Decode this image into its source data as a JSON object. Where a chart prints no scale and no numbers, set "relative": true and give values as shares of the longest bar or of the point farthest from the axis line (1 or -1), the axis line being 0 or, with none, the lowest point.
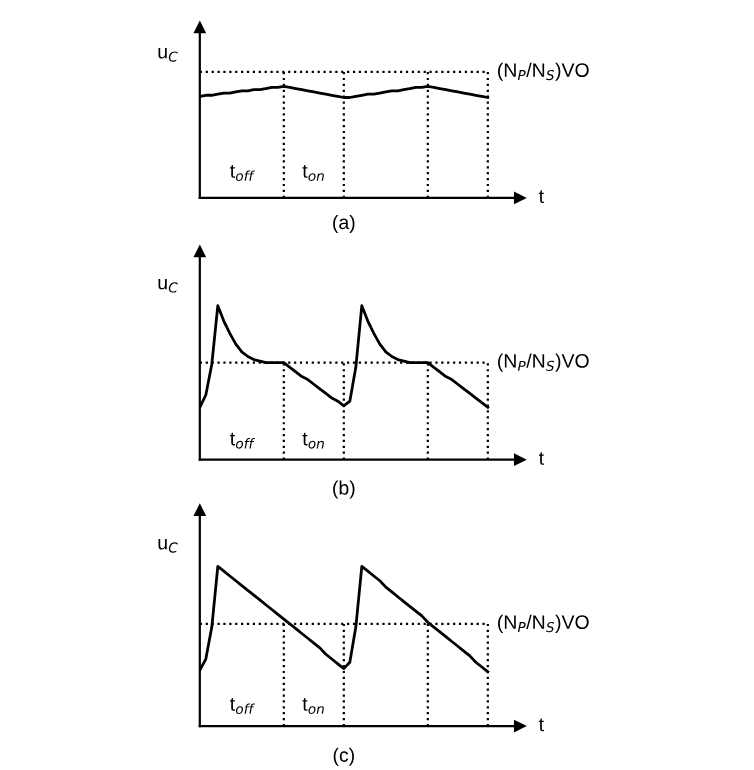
{
  "chart_data": [
    {
      "type": "line",
      "title": "(a)",
      "xlabel": "t",
      "ylabel": "u$_{C}$",
      "relative": true,
      "categories": [
        null,
        null,
        null,
        null,
        null,
        null,
        null,
        null,
        null,
        null,
        null,
        null,
        null,
        null,
        null,
        null,
        null,
        null,
        null,
        null,
        null,
        null,
        null,
        null,
        null,
        null,
        null,
        null,
        null,
        null,
        null,
        null,
        null,
        null,
        null,
        null,
        null,
        null,
        null,
        null,
        null,
        null,
        null,
        null,
        null,
        null,
        null,
        null,
        null
      ],
      "series": [
        {
          "color": "#000000",
          "values": [
            0.91,
            0.92,
            0.92,
            0.93,
            0.94,
            0.94,
            0.95,
            0.96,
            0.96,
            0.97,
            0.97,
            0.98,
            0.99,
            0.99,
            1.0,
            0.99,
            0.98,
            0.97,
            0.96,
            0.95,
            0.94,
            0.93,
            0.92,
            0.91,
            0.9,
            0.9,
            0.91,
            0.92,
            0.93,
            0.93,
            0.94,
            0.95,
            0.96,
            0.96,
            0.97,
            0.98,
            0.99,
            0.99,
            1.0,
            0.99,
            0.98,
            0.97,
            0.96,
            0.95,
            0.94,
            0.93,
            0.92,
            0.91,
            0.9
          ]
        }
      ],
      "ref_lines": [
        {
          "axis": "y",
          "value": 1.13,
          "label": "(N$_{P}$/N$_{S}$)VO",
          "line_style": "dotted"
        }
      ],
      "annotations": [
        "t$_{off}$",
        "t$_{on}$"
      ]
    },
    {
      "type": "line",
      "title": "(b)",
      "xlabel": "t",
      "ylabel": "u$_{C}$",
      "relative": true,
      "categories": [
        null,
        null,
        null,
        null,
        null,
        null,
        null,
        null,
        null,
        null,
        null,
        null,
        null,
        null,
        null,
        null,
        null,
        null,
        null,
        null,
        null,
        null,
        null,
        null,
        null,
        null,
        null,
        null,
        null,
        null,
        null,
        null,
        null,
        null,
        null,
        null,
        null,
        null,
        null,
        null,
        null,
        null,
        null,
        null,
        null,
        null,
        null,
        null,
        null
      ],
      "series": [
        {
          "color": "#000000",
          "values": [
            0.34,
            0.42,
            0.62,
            1.0,
            0.9,
            0.82,
            0.75,
            0.7,
            0.67,
            0.65,
            0.64,
            0.63,
            0.63,
            0.63,
            0.63,
            0.6,
            0.57,
            0.54,
            0.52,
            0.49,
            0.46,
            0.43,
            0.4,
            0.38,
            0.35,
            0.38,
            0.6,
            1.0,
            0.9,
            0.82,
            0.75,
            0.7,
            0.67,
            0.65,
            0.64,
            0.63,
            0.63,
            0.63,
            0.63,
            0.6,
            0.57,
            0.54,
            0.52,
            0.49,
            0.46,
            0.43,
            0.4,
            0.37,
            0.34
          ]
        }
      ],
      "ref_lines": [
        {
          "axis": "y",
          "value": 0.63,
          "label": "(N$_{P}$/N$_{S}$)VO",
          "line_style": "dotted"
        }
      ],
      "annotations": [
        "t$_{off}$",
        "t$_{on}$"
      ]
    },
    {
      "type": "line",
      "title": "(c)",
      "xlabel": "t",
      "ylabel": "u$_{C}$",
      "relative": true,
      "categories": [
        null,
        null,
        null,
        null,
        null,
        null,
        null,
        null,
        null,
        null,
        null,
        null,
        null,
        null,
        null,
        null,
        null,
        null,
        null,
        null,
        null,
        null,
        null,
        null,
        null,
        null,
        null,
        null,
        null,
        null,
        null,
        null,
        null,
        null,
        null,
        null,
        null,
        null,
        null,
        null,
        null,
        null,
        null,
        null,
        null,
        null,
        null,
        null,
        null
      ],
      "series": [
        {
          "color": "#000000",
          "values": [
            0.35,
            0.42,
            0.62,
            1.0,
            0.97,
            0.94,
            0.91,
            0.88,
            0.85,
            0.82,
            0.79,
            0.76,
            0.73,
            0.7,
            0.67,
            0.64,
            0.61,
            0.58,
            0.55,
            0.52,
            0.49,
            0.45,
            0.42,
            0.39,
            0.36,
            0.4,
            0.62,
            1.0,
            0.97,
            0.94,
            0.91,
            0.87,
            0.84,
            0.81,
            0.78,
            0.75,
            0.72,
            0.69,
            0.65,
            0.62,
            0.59,
            0.56,
            0.53,
            0.5,
            0.47,
            0.44,
            0.4,
            0.37,
            0.34
          ]
        }
      ],
      "ref_lines": [
        {
          "axis": "y",
          "value": 0.64,
          "label": "(N$_{P}$/N$_{S}$)VO",
          "line_style": "dotted"
        }
      ],
      "annotations": [
        "t$_{off}$",
        "t$_{on}$"
      ]
    }
  ]
}
